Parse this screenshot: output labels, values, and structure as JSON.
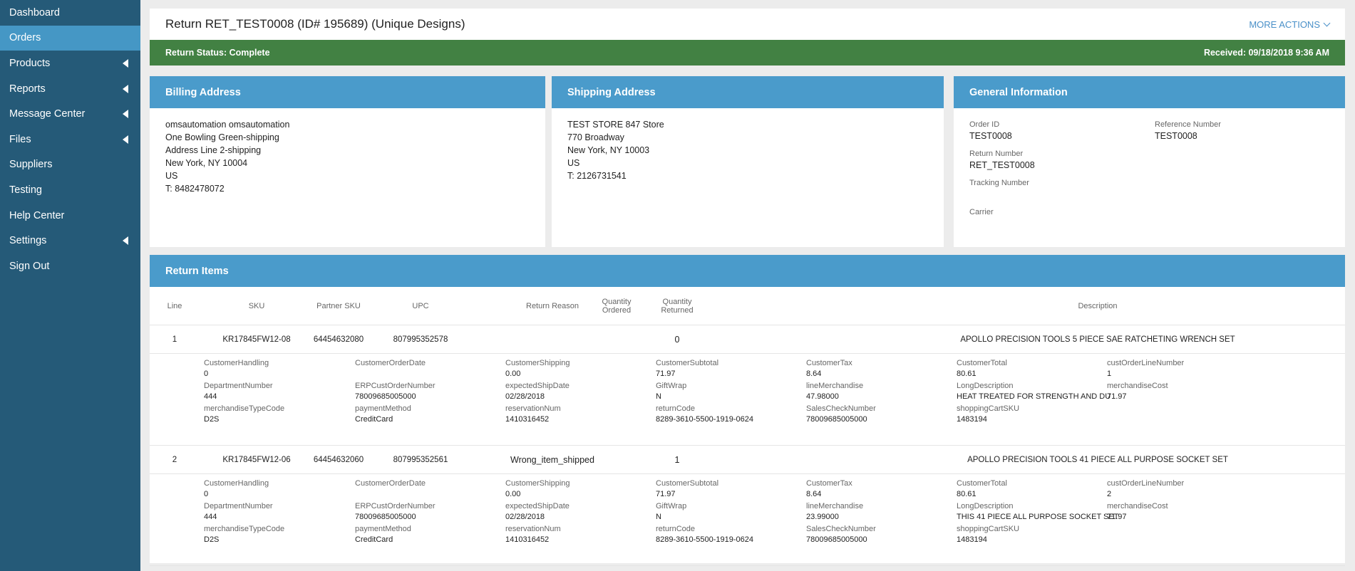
{
  "sidebar": {
    "items": [
      {
        "label": "Dashboard",
        "active": false,
        "chevron": false
      },
      {
        "label": "Orders",
        "active": true,
        "chevron": false
      },
      {
        "label": "Products",
        "active": false,
        "chevron": true
      },
      {
        "label": "Reports",
        "active": false,
        "chevron": true
      },
      {
        "label": "Message Center",
        "active": false,
        "chevron": true
      },
      {
        "label": "Files",
        "active": false,
        "chevron": true
      },
      {
        "label": "Suppliers",
        "active": false,
        "chevron": false
      },
      {
        "label": "Testing",
        "active": false,
        "chevron": false
      },
      {
        "label": "Help Center",
        "active": false,
        "chevron": false
      },
      {
        "label": "Settings",
        "active": false,
        "chevron": true
      },
      {
        "label": "Sign Out",
        "active": false,
        "chevron": false
      }
    ]
  },
  "header": {
    "title": "Return RET_TEST0008 (ID# 195689) (Unique Designs)",
    "more_actions": "MORE ACTIONS",
    "status": "Return Status: Complete",
    "received": "Received: 09/18/2018 9:36 AM"
  },
  "billing": {
    "title": "Billing Address",
    "lines": [
      "omsautomation omsautomation",
      "One Bowling Green-shipping",
      "Address Line 2-shipping",
      "New York, NY 10004",
      "US",
      "T: 8482478072"
    ]
  },
  "shipping": {
    "title": "Shipping Address",
    "lines": [
      "TEST STORE 847 Store",
      "770 Broadway",
      "New York, NY 10003",
      "US",
      "T: 2126731541"
    ]
  },
  "general": {
    "title": "General Information",
    "order_id_label": "Order ID",
    "order_id": "TEST0008",
    "reference_label": "Reference Number",
    "reference": "TEST0008",
    "return_number_label": "Return Number",
    "return_number": "RET_TEST0008",
    "tracking_label": "Tracking Number",
    "tracking": "",
    "carrier_label": "Carrier",
    "carrier": ""
  },
  "return_items": {
    "title": "Return Items",
    "columns": {
      "line": "Line",
      "sku": "SKU",
      "partner_sku": "Partner SKU",
      "upc": "UPC",
      "reason": "Return Reason",
      "qty_ordered_1": "Quantity",
      "qty_ordered_2": "Ordered",
      "qty_returned_1": "Quantity",
      "qty_returned_2": "Returned",
      "description": "Description"
    },
    "items": [
      {
        "line": "1",
        "sku": "KR17845FW12-08",
        "partner_sku": "64454632080",
        "upc": "807995352578",
        "reason": "",
        "qty_ordered": "",
        "qty_returned": "0",
        "description": "APOLLO PRECISION TOOLS 5 PIECE SAE RATCHETING WRENCH SET",
        "details": [
          {
            "label": "CustomerHandling",
            "value": "0"
          },
          {
            "label": "CustomerOrderDate",
            "value": ""
          },
          {
            "label": "CustomerShipping",
            "value": "0.00"
          },
          {
            "label": "CustomerSubtotal",
            "value": "71.97"
          },
          {
            "label": "CustomerTax",
            "value": "8.64"
          },
          {
            "label": "CustomerTotal",
            "value": "80.61"
          },
          {
            "label": "custOrderLineNumber",
            "value": "1"
          },
          {
            "label": "DepartmentNumber",
            "value": "444"
          },
          {
            "label": "ERPCustOrderNumber",
            "value": "78009685005000"
          },
          {
            "label": "expectedShipDate",
            "value": "02/28/2018"
          },
          {
            "label": "GiftWrap",
            "value": "N"
          },
          {
            "label": "lineMerchandise",
            "value": "47.98000"
          },
          {
            "label": "LongDescription",
            "value": "HEAT TREATED FOR STRENGTH AND DU"
          },
          {
            "label": "merchandiseCost",
            "value": "71.97"
          },
          {
            "label": "merchandiseTypeCode",
            "value": "D2S"
          },
          {
            "label": "paymentMethod",
            "value": "CreditCard"
          },
          {
            "label": "reservationNum",
            "value": "1410316452"
          },
          {
            "label": "returnCode",
            "value": "8289-3610-5500-1919-0624"
          },
          {
            "label": "SalesCheckNumber",
            "value": "78009685005000"
          },
          {
            "label": "shoppingCartSKU",
            "value": "1483194"
          }
        ]
      },
      {
        "line": "2",
        "sku": "KR17845FW12-06",
        "partner_sku": "64454632060",
        "upc": "807995352561",
        "reason": "Wrong_item_shipped",
        "qty_ordered": "",
        "qty_returned": "1",
        "description": "APOLLO PRECISION TOOLS 41 PIECE ALL PURPOSE SOCKET SET",
        "details": [
          {
            "label": "CustomerHandling",
            "value": "0"
          },
          {
            "label": "CustomerOrderDate",
            "value": ""
          },
          {
            "label": "CustomerShipping",
            "value": "0.00"
          },
          {
            "label": "CustomerSubtotal",
            "value": "71.97"
          },
          {
            "label": "CustomerTax",
            "value": "8.64"
          },
          {
            "label": "CustomerTotal",
            "value": "80.61"
          },
          {
            "label": "custOrderLineNumber",
            "value": "2"
          },
          {
            "label": "DepartmentNumber",
            "value": "444"
          },
          {
            "label": "ERPCustOrderNumber",
            "value": "78009685005000"
          },
          {
            "label": "expectedShipDate",
            "value": "02/28/2018"
          },
          {
            "label": "GiftWrap",
            "value": "N"
          },
          {
            "label": "lineMerchandise",
            "value": "23.99000"
          },
          {
            "label": "LongDescription",
            "value": "THIS 41 PIECE ALL PURPOSE SOCKET SET"
          },
          {
            "label": "merchandiseCost",
            "value": "71.97"
          },
          {
            "label": "merchandiseTypeCode",
            "value": "D2S"
          },
          {
            "label": "paymentMethod",
            "value": "CreditCard"
          },
          {
            "label": "reservationNum",
            "value": "1410316452"
          },
          {
            "label": "returnCode",
            "value": "8289-3610-5500-1919-0624"
          },
          {
            "label": "SalesCheckNumber",
            "value": "78009685005000"
          },
          {
            "label": "shoppingCartSKU",
            "value": "1483194"
          }
        ]
      }
    ]
  },
  "colors": {
    "sidebar": "#255a78",
    "sidebar_active": "#4597c5",
    "card_header": "#4a9bcb",
    "status_green": "#428143",
    "link": "#4a90c8"
  }
}
